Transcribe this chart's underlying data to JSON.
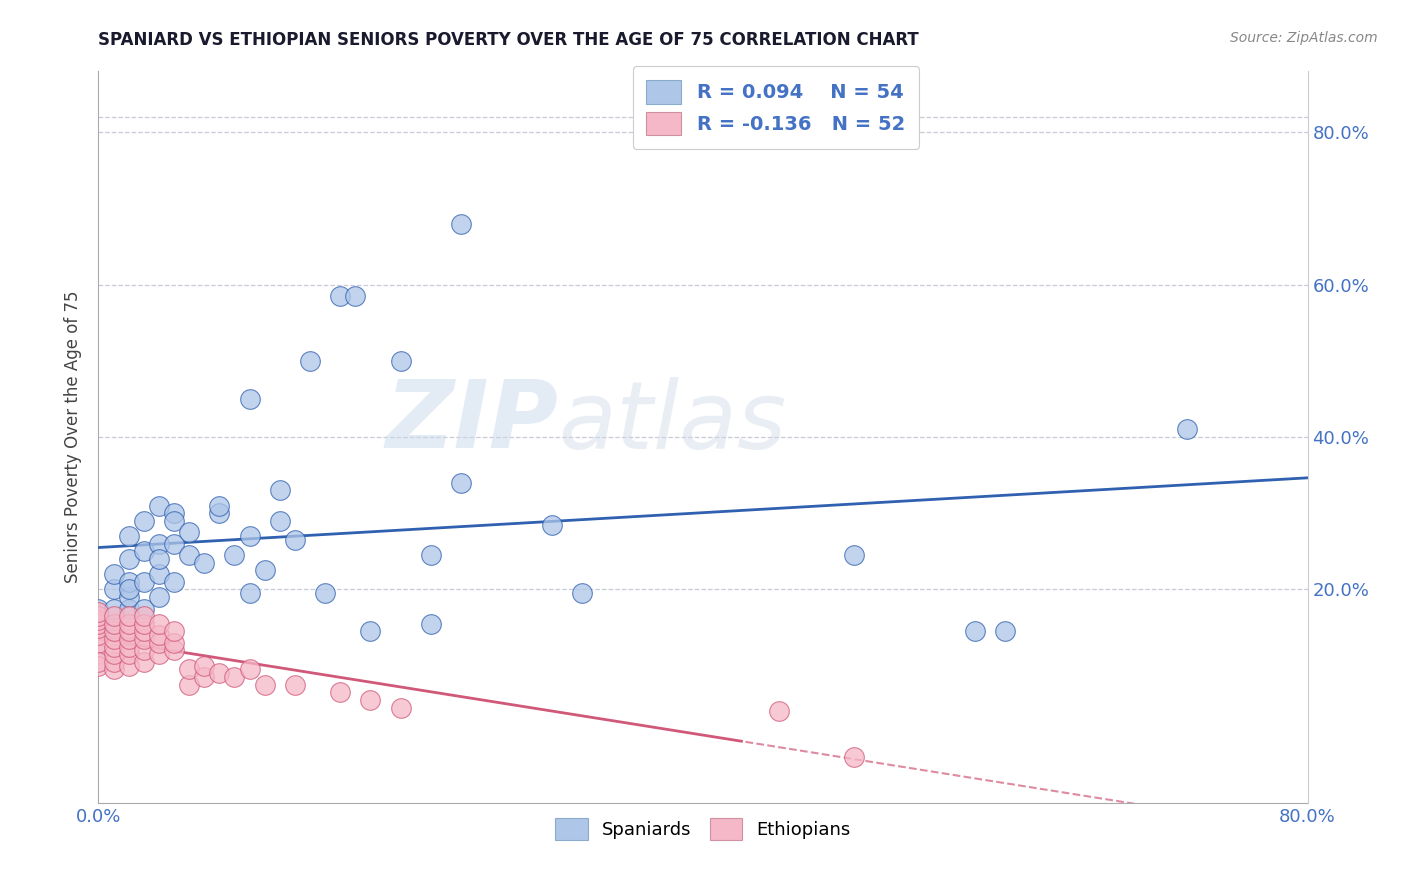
{
  "title": "SPANIARD VS ETHIOPIAN SENIORS POVERTY OVER THE AGE OF 75 CORRELATION CHART",
  "source_text": "Source: ZipAtlas.com",
  "ylabel": "Seniors Poverty Over the Age of 75",
  "xlim": [
    0.0,
    0.8
  ],
  "ylim": [
    -0.08,
    0.88
  ],
  "legend_r1": "R = 0.094",
  "legend_n1": "N = 54",
  "legend_r2": "R = -0.136",
  "legend_n2": "N = 52",
  "spaniard_color": "#aec6e8",
  "ethiopian_color": "#f5b8c8",
  "line_spaniard_color": "#3060b0",
  "line_ethiopian_color": "#d05878",
  "watermark_zip": "ZIP",
  "watermark_atlas": "atlas",
  "spaniard_points": [
    [
      0.0,
      0.155
    ],
    [
      0.0,
      0.175
    ],
    [
      0.01,
      0.15
    ],
    [
      0.01,
      0.175
    ],
    [
      0.01,
      0.2
    ],
    [
      0.01,
      0.22
    ],
    [
      0.02,
      0.175
    ],
    [
      0.02,
      0.19
    ],
    [
      0.02,
      0.21
    ],
    [
      0.02,
      0.24
    ],
    [
      0.02,
      0.27
    ],
    [
      0.02,
      0.2
    ],
    [
      0.03,
      0.175
    ],
    [
      0.03,
      0.21
    ],
    [
      0.03,
      0.25
    ],
    [
      0.03,
      0.29
    ],
    [
      0.04,
      0.19
    ],
    [
      0.04,
      0.22
    ],
    [
      0.04,
      0.26
    ],
    [
      0.04,
      0.31
    ],
    [
      0.04,
      0.24
    ],
    [
      0.05,
      0.21
    ],
    [
      0.05,
      0.26
    ],
    [
      0.05,
      0.3
    ],
    [
      0.05,
      0.29
    ],
    [
      0.06,
      0.245
    ],
    [
      0.06,
      0.275
    ],
    [
      0.07,
      0.235
    ],
    [
      0.08,
      0.3
    ],
    [
      0.08,
      0.31
    ],
    [
      0.09,
      0.245
    ],
    [
      0.1,
      0.195
    ],
    [
      0.1,
      0.27
    ],
    [
      0.1,
      0.45
    ],
    [
      0.11,
      0.225
    ],
    [
      0.12,
      0.29
    ],
    [
      0.12,
      0.33
    ],
    [
      0.13,
      0.265
    ],
    [
      0.14,
      0.5
    ],
    [
      0.15,
      0.195
    ],
    [
      0.16,
      0.585
    ],
    [
      0.17,
      0.585
    ],
    [
      0.18,
      0.145
    ],
    [
      0.2,
      0.5
    ],
    [
      0.22,
      0.155
    ],
    [
      0.22,
      0.245
    ],
    [
      0.24,
      0.34
    ],
    [
      0.24,
      0.68
    ],
    [
      0.3,
      0.285
    ],
    [
      0.32,
      0.195
    ],
    [
      0.5,
      0.245
    ],
    [
      0.58,
      0.145
    ],
    [
      0.6,
      0.145
    ],
    [
      0.72,
      0.41
    ]
  ],
  "ethiopian_points": [
    [
      0.0,
      0.115
    ],
    [
      0.0,
      0.13
    ],
    [
      0.0,
      0.14
    ],
    [
      0.0,
      0.15
    ],
    [
      0.0,
      0.155
    ],
    [
      0.0,
      0.16
    ],
    [
      0.0,
      0.165
    ],
    [
      0.0,
      0.17
    ],
    [
      0.0,
      0.1
    ],
    [
      0.0,
      0.105
    ],
    [
      0.01,
      0.095
    ],
    [
      0.01,
      0.105
    ],
    [
      0.01,
      0.115
    ],
    [
      0.01,
      0.125
    ],
    [
      0.01,
      0.135
    ],
    [
      0.01,
      0.145
    ],
    [
      0.01,
      0.155
    ],
    [
      0.01,
      0.165
    ],
    [
      0.02,
      0.1
    ],
    [
      0.02,
      0.115
    ],
    [
      0.02,
      0.125
    ],
    [
      0.02,
      0.135
    ],
    [
      0.02,
      0.145
    ],
    [
      0.02,
      0.155
    ],
    [
      0.02,
      0.165
    ],
    [
      0.03,
      0.105
    ],
    [
      0.03,
      0.12
    ],
    [
      0.03,
      0.135
    ],
    [
      0.03,
      0.145
    ],
    [
      0.03,
      0.155
    ],
    [
      0.03,
      0.165
    ],
    [
      0.04,
      0.115
    ],
    [
      0.04,
      0.13
    ],
    [
      0.04,
      0.14
    ],
    [
      0.04,
      0.155
    ],
    [
      0.05,
      0.12
    ],
    [
      0.05,
      0.13
    ],
    [
      0.05,
      0.145
    ],
    [
      0.06,
      0.075
    ],
    [
      0.06,
      0.095
    ],
    [
      0.07,
      0.085
    ],
    [
      0.07,
      0.1
    ],
    [
      0.08,
      0.09
    ],
    [
      0.09,
      0.085
    ],
    [
      0.1,
      0.095
    ],
    [
      0.11,
      0.075
    ],
    [
      0.13,
      0.075
    ],
    [
      0.16,
      0.065
    ],
    [
      0.18,
      0.055
    ],
    [
      0.2,
      0.045
    ],
    [
      0.45,
      0.04
    ],
    [
      0.5,
      -0.02
    ]
  ]
}
